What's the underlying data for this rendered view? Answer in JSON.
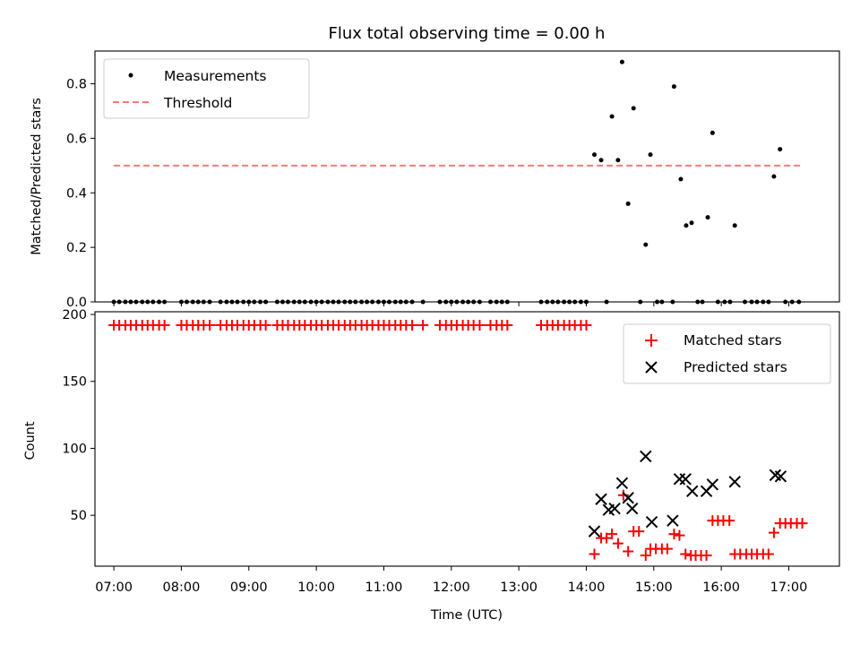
{
  "chart_data": [
    {
      "type": "scatter",
      "title": "Flux total observing time = 0.00 h",
      "xlabel": "",
      "ylabel": "Matched/Predicted stars",
      "xlim": [
        6.72,
        17.75
      ],
      "ylim": [
        0,
        0.92
      ],
      "yticks": [
        0.0,
        0.2,
        0.4,
        0.6,
        0.8
      ],
      "ytick_labels": [
        "0.0",
        "0.2",
        "0.4",
        "0.6",
        "0.8"
      ],
      "legend": {
        "location": "top-left",
        "entries": [
          "Measurements",
          "Threshold"
        ]
      },
      "series": [
        {
          "name": "Measurements",
          "color": "#000000",
          "marker": "dot",
          "points": [
            [
              7.0,
              0
            ],
            [
              7.08,
              0
            ],
            [
              7.17,
              0
            ],
            [
              7.25,
              0
            ],
            [
              7.33,
              0
            ],
            [
              7.42,
              0
            ],
            [
              7.5,
              0
            ],
            [
              7.58,
              0
            ],
            [
              7.67,
              0
            ],
            [
              7.75,
              0
            ],
            [
              8.0,
              0
            ],
            [
              8.08,
              0
            ],
            [
              8.17,
              0
            ],
            [
              8.25,
              0
            ],
            [
              8.33,
              0
            ],
            [
              8.42,
              0
            ],
            [
              8.58,
              0
            ],
            [
              8.67,
              0
            ],
            [
              8.75,
              0
            ],
            [
              8.83,
              0
            ],
            [
              8.92,
              0
            ],
            [
              9.0,
              0
            ],
            [
              9.08,
              0
            ],
            [
              9.17,
              0
            ],
            [
              9.25,
              0
            ],
            [
              9.42,
              0
            ],
            [
              9.5,
              0
            ],
            [
              9.58,
              0
            ],
            [
              9.67,
              0
            ],
            [
              9.75,
              0
            ],
            [
              9.83,
              0
            ],
            [
              9.92,
              0
            ],
            [
              10.0,
              0
            ],
            [
              10.08,
              0
            ],
            [
              10.17,
              0
            ],
            [
              10.25,
              0
            ],
            [
              10.33,
              0
            ],
            [
              10.42,
              0
            ],
            [
              10.5,
              0
            ],
            [
              10.58,
              0
            ],
            [
              10.67,
              0
            ],
            [
              10.75,
              0
            ],
            [
              10.83,
              0
            ],
            [
              10.92,
              0
            ],
            [
              11.0,
              0
            ],
            [
              11.08,
              0
            ],
            [
              11.17,
              0
            ],
            [
              11.25,
              0
            ],
            [
              11.33,
              0
            ],
            [
              11.42,
              0
            ],
            [
              11.58,
              0
            ],
            [
              11.83,
              0
            ],
            [
              11.92,
              0
            ],
            [
              12.0,
              0
            ],
            [
              12.08,
              0
            ],
            [
              12.17,
              0
            ],
            [
              12.25,
              0
            ],
            [
              12.33,
              0
            ],
            [
              12.42,
              0
            ],
            [
              12.58,
              0
            ],
            [
              12.67,
              0
            ],
            [
              12.75,
              0
            ],
            [
              12.83,
              0
            ],
            [
              13.33,
              0
            ],
            [
              13.42,
              0
            ],
            [
              13.5,
              0
            ],
            [
              13.58,
              0
            ],
            [
              13.67,
              0
            ],
            [
              13.75,
              0
            ],
            [
              13.83,
              0
            ],
            [
              13.92,
              0
            ],
            [
              14.0,
              0
            ],
            [
              14.12,
              0.54
            ],
            [
              14.22,
              0.52
            ],
            [
              14.3,
              0
            ],
            [
              14.38,
              0.68
            ],
            [
              14.47,
              0.52
            ],
            [
              14.53,
              0.88
            ],
            [
              14.62,
              0.36
            ],
            [
              14.7,
              0.71
            ],
            [
              14.8,
              0
            ],
            [
              14.88,
              0.21
            ],
            [
              14.95,
              0.54
            ],
            [
              15.05,
              0
            ],
            [
              15.12,
              0
            ],
            [
              15.28,
              0
            ],
            [
              15.3,
              0.79
            ],
            [
              15.4,
              0.45
            ],
            [
              15.48,
              0.28
            ],
            [
              15.56,
              0.29
            ],
            [
              15.65,
              0
            ],
            [
              15.72,
              0
            ],
            [
              15.8,
              0.31
            ],
            [
              15.87,
              0.62
            ],
            [
              15.95,
              0
            ],
            [
              16.05,
              0
            ],
            [
              16.13,
              0
            ],
            [
              16.2,
              0.28
            ],
            [
              16.35,
              0
            ],
            [
              16.45,
              0
            ],
            [
              16.53,
              0
            ],
            [
              16.62,
              0
            ],
            [
              16.7,
              0
            ],
            [
              16.78,
              0.46
            ],
            [
              16.87,
              0.56
            ],
            [
              16.95,
              0
            ],
            [
              17.05,
              0
            ],
            [
              17.15,
              0
            ]
          ]
        },
        {
          "name": "Threshold",
          "color": "#ff7777",
          "style": "dashed",
          "points": [
            [
              7.0,
              0.5
            ],
            [
              17.2,
              0.5
            ]
          ]
        }
      ]
    },
    {
      "type": "scatter",
      "title": "",
      "xlabel": "Time (UTC)",
      "ylabel": "Count",
      "xlim": [
        6.72,
        17.75
      ],
      "ylim": [
        12,
        202
      ],
      "yticks": [
        50,
        100,
        150,
        200
      ],
      "ytick_labels": [
        "50",
        "100",
        "150",
        "200"
      ],
      "xticks": [
        7,
        8,
        9,
        10,
        11,
        12,
        13,
        14,
        15,
        16,
        17
      ],
      "xtick_labels": [
        "07:00",
        "08:00",
        "09:00",
        "10:00",
        "11:00",
        "12:00",
        "13:00",
        "14:00",
        "15:00",
        "16:00",
        "17:00"
      ],
      "legend": {
        "location": "top-right",
        "entries": [
          "Matched stars",
          "Predicted stars"
        ]
      },
      "series": [
        {
          "name": "Matched stars",
          "color": "#ff0000",
          "marker": "plus",
          "points": [
            [
              7.0,
              192
            ],
            [
              7.08,
              192
            ],
            [
              7.17,
              192
            ],
            [
              7.25,
              192
            ],
            [
              7.33,
              192
            ],
            [
              7.42,
              192
            ],
            [
              7.5,
              192
            ],
            [
              7.58,
              192
            ],
            [
              7.67,
              192
            ],
            [
              7.75,
              192
            ],
            [
              8.0,
              192
            ],
            [
              8.08,
              192
            ],
            [
              8.17,
              192
            ],
            [
              8.25,
              192
            ],
            [
              8.33,
              192
            ],
            [
              8.42,
              192
            ],
            [
              8.58,
              192
            ],
            [
              8.67,
              192
            ],
            [
              8.75,
              192
            ],
            [
              8.83,
              192
            ],
            [
              8.92,
              192
            ],
            [
              9.0,
              192
            ],
            [
              9.08,
              192
            ],
            [
              9.17,
              192
            ],
            [
              9.25,
              192
            ],
            [
              9.42,
              192
            ],
            [
              9.5,
              192
            ],
            [
              9.58,
              192
            ],
            [
              9.67,
              192
            ],
            [
              9.75,
              192
            ],
            [
              9.83,
              192
            ],
            [
              9.92,
              192
            ],
            [
              10.0,
              192
            ],
            [
              10.08,
              192
            ],
            [
              10.17,
              192
            ],
            [
              10.25,
              192
            ],
            [
              10.33,
              192
            ],
            [
              10.42,
              192
            ],
            [
              10.5,
              192
            ],
            [
              10.58,
              192
            ],
            [
              10.67,
              192
            ],
            [
              10.75,
              192
            ],
            [
              10.83,
              192
            ],
            [
              10.92,
              192
            ],
            [
              11.0,
              192
            ],
            [
              11.08,
              192
            ],
            [
              11.17,
              192
            ],
            [
              11.25,
              192
            ],
            [
              11.33,
              192
            ],
            [
              11.42,
              192
            ],
            [
              11.58,
              192
            ],
            [
              11.83,
              192
            ],
            [
              11.92,
              192
            ],
            [
              12.0,
              192
            ],
            [
              12.08,
              192
            ],
            [
              12.17,
              192
            ],
            [
              12.25,
              192
            ],
            [
              12.33,
              192
            ],
            [
              12.42,
              192
            ],
            [
              12.58,
              192
            ],
            [
              12.67,
              192
            ],
            [
              12.75,
              192
            ],
            [
              12.83,
              192
            ],
            [
              13.33,
              192
            ],
            [
              13.42,
              192
            ],
            [
              13.5,
              192
            ],
            [
              13.58,
              192
            ],
            [
              13.67,
              192
            ],
            [
              13.75,
              192
            ],
            [
              13.83,
              192
            ],
            [
              13.92,
              192
            ],
            [
              14.0,
              192
            ],
            [
              14.12,
              21
            ],
            [
              14.22,
              33
            ],
            [
              14.3,
              33
            ],
            [
              14.38,
              36
            ],
            [
              14.47,
              29
            ],
            [
              14.55,
              65
            ],
            [
              14.62,
              23
            ],
            [
              14.7,
              38
            ],
            [
              14.78,
              38
            ],
            [
              14.88,
              20
            ],
            [
              14.95,
              25
            ],
            [
              15.03,
              25
            ],
            [
              15.12,
              25
            ],
            [
              15.2,
              25
            ],
            [
              15.3,
              36
            ],
            [
              15.38,
              35
            ],
            [
              15.47,
              21
            ],
            [
              15.55,
              20
            ],
            [
              15.62,
              20
            ],
            [
              15.7,
              20
            ],
            [
              15.78,
              20
            ],
            [
              15.87,
              46
            ],
            [
              15.95,
              46
            ],
            [
              16.03,
              46
            ],
            [
              16.12,
              46
            ],
            [
              16.2,
              21
            ],
            [
              16.28,
              21
            ],
            [
              16.37,
              21
            ],
            [
              16.45,
              21
            ],
            [
              16.53,
              21
            ],
            [
              16.62,
              21
            ],
            [
              16.7,
              21
            ],
            [
              16.78,
              37
            ],
            [
              16.87,
              44
            ],
            [
              16.95,
              44
            ],
            [
              17.03,
              44
            ],
            [
              17.12,
              44
            ],
            [
              17.2,
              44
            ]
          ]
        },
        {
          "name": "Predicted stars",
          "color": "#000000",
          "marker": "x",
          "points": [
            [
              14.12,
              38
            ],
            [
              14.22,
              62
            ],
            [
              14.33,
              54
            ],
            [
              14.42,
              55
            ],
            [
              14.53,
              74
            ],
            [
              14.62,
              63
            ],
            [
              14.68,
              55
            ],
            [
              14.88,
              94
            ],
            [
              14.97,
              45
            ],
            [
              15.28,
              46
            ],
            [
              15.38,
              77
            ],
            [
              15.47,
              77
            ],
            [
              15.57,
              68
            ],
            [
              15.78,
              68
            ],
            [
              15.87,
              73
            ],
            [
              16.2,
              75
            ],
            [
              16.8,
              80
            ],
            [
              16.88,
              79
            ]
          ]
        }
      ]
    }
  ]
}
